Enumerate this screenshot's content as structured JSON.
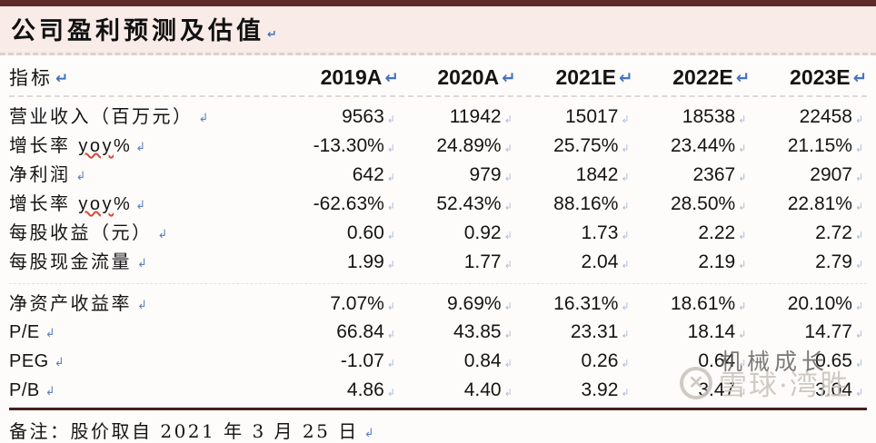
{
  "title": "公司盈利预测及估值",
  "marks": {
    "return": "↵",
    "linebreak": "↲"
  },
  "table": {
    "index_header": "指标",
    "columns": [
      "2019A",
      "2020A",
      "2021E",
      "2022E",
      "2023E"
    ],
    "rows": [
      {
        "label": "营业收入（百万元）",
        "values": [
          "9563",
          "11942",
          "15017",
          "18538",
          "22458"
        ]
      },
      {
        "label": "增长率 yoy%",
        "parts": [
          "增长率 ",
          "yoy",
          "%"
        ],
        "values": [
          "-13.30%",
          "24.89%",
          "25.75%",
          "23.44%",
          "21.15%"
        ]
      },
      {
        "label": "净利润",
        "values": [
          "642",
          "979",
          "1842",
          "2367",
          "2907"
        ]
      },
      {
        "label": "增长率 yoy%",
        "parts": [
          "增长率 ",
          "yoy",
          "%"
        ],
        "values": [
          "-62.63%",
          "52.43%",
          "88.16%",
          "28.50%",
          "22.81%"
        ]
      },
      {
        "label": "每股收益（元）",
        "values": [
          "0.60",
          "0.92",
          "1.73",
          "2.22",
          "2.72"
        ]
      },
      {
        "label": "每股现金流量",
        "values": [
          "1.99",
          "1.77",
          "2.04",
          "2.19",
          "2.79"
        ]
      },
      {
        "label": "净资产收益率",
        "values": [
          "7.07%",
          "9.69%",
          "16.31%",
          "18.61%",
          "20.10%"
        ]
      },
      {
        "label": "P/E",
        "values": [
          "66.84",
          "43.85",
          "23.31",
          "18.14",
          "14.77"
        ]
      },
      {
        "label": "PEG",
        "values": [
          "-1.07",
          "0.84",
          "0.26",
          "0.64",
          "0.65"
        ]
      },
      {
        "label": "P/B",
        "values": [
          "4.86",
          "4.40",
          "3.92",
          "3.47",
          "3.04"
        ]
      }
    ]
  },
  "note": "备注：股价取自 2021 年 3 月 25 日",
  "watermark": {
    "author_text": "机械成长",
    "brand_text": "雪球·湾胜",
    "logo_glyph": "✕"
  },
  "colors": {
    "top_bar": "#5e2b28",
    "title_background": "#f9ece8",
    "return_mark_blue": "#4472c4",
    "bottom_rule": "#47211d",
    "spellcheck_red": "#d44a3a"
  }
}
